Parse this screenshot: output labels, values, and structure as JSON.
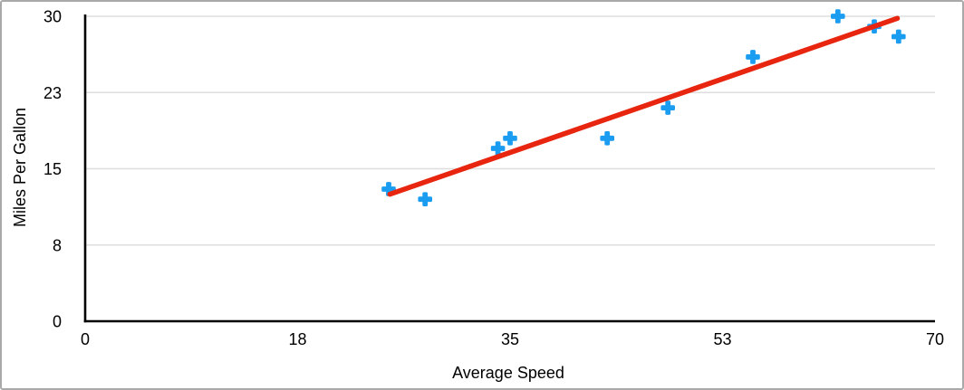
{
  "window": {
    "background_color": "#ffffff",
    "border_color": "#a9a9a9"
  },
  "chart_data": {
    "type": "scatter",
    "xlabel": "Average Speed",
    "ylabel": "Miles Per Gallon",
    "xlim": [
      0,
      70
    ],
    "ylim": [
      0,
      30
    ],
    "x_ticks": [
      {
        "value": 0,
        "label": "0"
      },
      {
        "value": 17.5,
        "label": "18"
      },
      {
        "value": 35,
        "label": "35"
      },
      {
        "value": 52.5,
        "label": "53"
      },
      {
        "value": 70,
        "label": "70"
      }
    ],
    "y_ticks": [
      {
        "value": 0,
        "label": "0"
      },
      {
        "value": 7.5,
        "label": "8"
      },
      {
        "value": 15,
        "label": "15"
      },
      {
        "value": 22.5,
        "label": "23"
      },
      {
        "value": 30,
        "label": "30"
      }
    ],
    "grid": "horizontal-only",
    "legend": "none",
    "series": [
      {
        "name": "Miles Per Gallon",
        "marker": "plus",
        "color": "#1a9cf0",
        "points": [
          {
            "x": 25,
            "y": 13
          },
          {
            "x": 28,
            "y": 12
          },
          {
            "x": 34,
            "y": 17
          },
          {
            "x": 35,
            "y": 18
          },
          {
            "x": 43,
            "y": 18
          },
          {
            "x": 48,
            "y": 21
          },
          {
            "x": 55,
            "y": 26
          },
          {
            "x": 62,
            "y": 30
          },
          {
            "x": 65,
            "y": 29
          },
          {
            "x": 67,
            "y": 28
          }
        ]
      }
    ],
    "trendline": {
      "type": "linear",
      "color": "#e8250f",
      "x1": 25.1,
      "y1": 12.5,
      "x2": 66.9,
      "y2": 29.8
    },
    "colors": {
      "gridline": "#dedede",
      "axis_line": "#000000",
      "tick_label": "#000000"
    }
  }
}
